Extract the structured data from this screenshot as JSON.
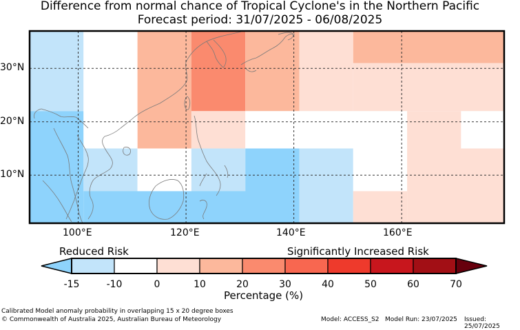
{
  "title": {
    "line1": "Difference from normal chance of Tropical Cyclone's in the Northern Pacific",
    "line2": "Forecast period: 31/07/2025 - 06/08/2025"
  },
  "map": {
    "lon_labels": [
      "100°E",
      "120°E",
      "140°E",
      "160°E"
    ],
    "lat_labels": [
      "30°N",
      "20°N",
      "10°N"
    ],
    "lon_range": [
      91,
      179
    ],
    "lat_range": [
      1,
      37
    ],
    "grid_lons": [
      100,
      120,
      140,
      160
    ],
    "grid_lats": [
      10,
      20,
      30
    ]
  },
  "cells": [
    {
      "lon0": 91,
      "lon1": 101,
      "lat0": 22,
      "lat1": 37,
      "color": "#c2e4fa"
    },
    {
      "lon0": 101,
      "lon1": 111,
      "lat0": 22,
      "lat1": 37,
      "color": "#ffffff"
    },
    {
      "lon0": 111,
      "lon1": 121,
      "lat0": 15,
      "lat1": 37,
      "color": "#fcb89c"
    },
    {
      "lon0": 121,
      "lon1": 131,
      "lat0": 22,
      "lat1": 37,
      "color": "#fa8a6e"
    },
    {
      "lon0": 131,
      "lon1": 141,
      "lat0": 22,
      "lat1": 37,
      "color": "#fcb89c"
    },
    {
      "lon0": 141,
      "lon1": 151,
      "lat0": 22,
      "lat1": 37,
      "color": "#fedfd4"
    },
    {
      "lon0": 151,
      "lon1": 179,
      "lat0": 31,
      "lat1": 37,
      "color": "#fcb89c"
    },
    {
      "lon0": 151,
      "lon1": 179,
      "lat0": 22,
      "lat1": 31,
      "color": "#fedfd4"
    },
    {
      "lon0": 91,
      "lon1": 101,
      "lat0": 1,
      "lat1": 22,
      "color": "#8ed3fc"
    },
    {
      "lon0": 101,
      "lon1": 111,
      "lat0": 15,
      "lat1": 22,
      "color": "#ffffff"
    },
    {
      "lon0": 121,
      "lon1": 131,
      "lat0": 15,
      "lat1": 22,
      "color": "#fedfd4"
    },
    {
      "lon0": 131,
      "lon1": 151,
      "lat0": 15,
      "lat1": 22,
      "color": "#ffffff"
    },
    {
      "lon0": 151,
      "lon1": 161,
      "lat0": 15,
      "lat1": 22,
      "color": "#ffffff"
    },
    {
      "lon0": 161,
      "lon1": 171,
      "lat0": 15,
      "lat1": 22,
      "color": "#fedfd4"
    },
    {
      "lon0": 171,
      "lon1": 179,
      "lat0": 15,
      "lat1": 22,
      "color": "#ffffff"
    },
    {
      "lon0": 101,
      "lon1": 111,
      "lat0": 7,
      "lat1": 15,
      "color": "#c2e4fa"
    },
    {
      "lon0": 111,
      "lon1": 121,
      "lat0": 7,
      "lat1": 15,
      "color": "#ffffff"
    },
    {
      "lon0": 121,
      "lon1": 131,
      "lat0": 7,
      "lat1": 15,
      "color": "#c2e4fa"
    },
    {
      "lon0": 131,
      "lon1": 141,
      "lat0": 7,
      "lat1": 15,
      "color": "#8ed3fc"
    },
    {
      "lon0": 141,
      "lon1": 151,
      "lat0": 7,
      "lat1": 15,
      "color": "#c2e4fa"
    },
    {
      "lon0": 151,
      "lon1": 161,
      "lat0": 7,
      "lat1": 15,
      "color": "#ffffff"
    },
    {
      "lon0": 161,
      "lon1": 179,
      "lat0": 1,
      "lat1": 15,
      "color": "#fedfd4"
    },
    {
      "lon0": 101,
      "lon1": 141,
      "lat0": 1,
      "lat1": 7,
      "color": "#8ed3fc"
    },
    {
      "lon0": 141,
      "lon1": 151,
      "lat0": 1,
      "lat1": 7,
      "color": "#c2e4fa"
    },
    {
      "lon0": 151,
      "lon1": 161,
      "lat0": 1,
      "lat1": 7,
      "color": "#fedfd4"
    }
  ],
  "legend": {
    "reduced_label": "Reduced Risk",
    "increased_label": "Significantly Increased Risk",
    "ticks": [
      "-15",
      "-10",
      "0",
      "10",
      "20",
      "30",
      "40",
      "50",
      "60",
      "70"
    ],
    "colors": [
      "#c2e4fa",
      "#ffffff",
      "#fedfd4",
      "#fcb89c",
      "#fa8a6e",
      "#f86750",
      "#ee3a2c",
      "#c8161d",
      "#a20f15"
    ],
    "low_extend_color": "#8ed3fc",
    "high_extend_color": "#67000d",
    "axis_label": "Percentage (%)"
  },
  "footer": {
    "description": "Calibrated Model anomaly probability in overlapping 15 x 20 degree boxes",
    "copyright": "© Commonwealth of Australia 2025, Australian Bureau of Meteorology",
    "model": "Model: ACCESS_S2",
    "model_run": "Model Run: 23/07/2025",
    "issued": "Issued: 25/07/2025"
  }
}
